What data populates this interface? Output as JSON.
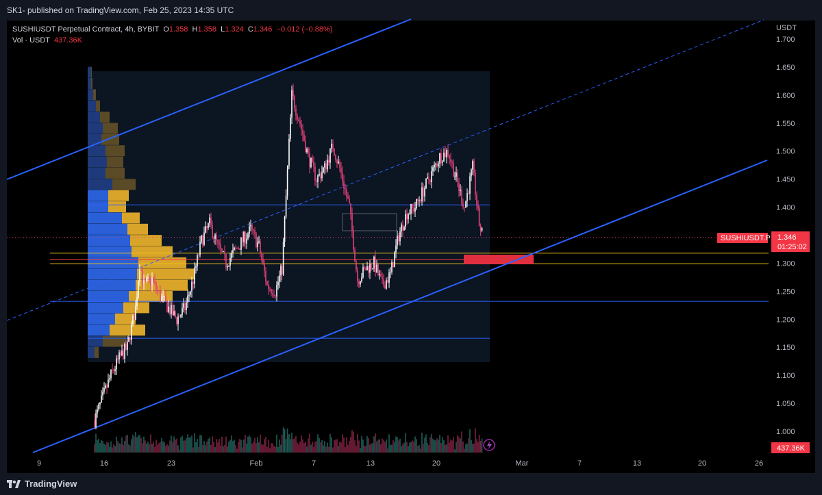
{
  "header": {
    "published": "SK1- published on TradingView.com, Feb 25, 2023 14:35 UTC"
  },
  "legend": {
    "symbol": "SUSHIUSDT Perpetual Contract, 4h, BYBIT",
    "o_label": "O",
    "o": "1.358",
    "h_label": "H",
    "h": "1.358",
    "l_label": "L",
    "l": "1.324",
    "c_label": "C",
    "c": "1.346",
    "change": "−0.012 (−0.88%)",
    "vol_label": "Vol · USDT",
    "vol": "437.36K"
  },
  "footer": {
    "brand": "TradingView"
  },
  "colors": {
    "up": "#ffffff",
    "down": "#e9417a",
    "accent_blue": "#2962ff",
    "level_yellow": "#f0c419",
    "tag_red": "#f23645"
  },
  "chart_data": {
    "type": "candlestick",
    "symbol": "SUSHIUSDT",
    "currency": "USDT",
    "timeframe": "4h",
    "ylim": [
      0.95,
      1.72
    ],
    "yticks": [
      "1.700",
      "1.650",
      "1.600",
      "1.550",
      "1.500",
      "1.450",
      "1.400",
      "1.350",
      "1.300",
      "1.250",
      "1.200",
      "1.150",
      "1.100",
      "1.050",
      "1.000"
    ],
    "xticks": [
      "9",
      "16",
      "23",
      "Feb",
      "7",
      "13",
      "20",
      "Mar",
      "7",
      "13",
      "20",
      "26"
    ],
    "last_price": {
      "symbol_tag": "SUSHIUSDT.P",
      "value": "1.346",
      "countdown": "01:25:02"
    },
    "volume_tag": "437.36K",
    "path": [
      [
        9,
        1.02
      ],
      [
        10,
        1.06
      ],
      [
        11,
        1.1
      ],
      [
        12,
        1.13
      ],
      [
        13,
        1.15
      ],
      [
        14,
        1.22
      ],
      [
        14.5,
        1.3
      ],
      [
        15,
        1.26
      ],
      [
        16,
        1.27
      ],
      [
        17,
        1.24
      ],
      [
        18,
        1.22
      ],
      [
        19,
        1.2
      ],
      [
        20,
        1.22
      ],
      [
        21,
        1.27
      ],
      [
        22,
        1.34
      ],
      [
        23,
        1.37
      ],
      [
        24,
        1.33
      ],
      [
        25,
        1.3
      ],
      [
        26,
        1.32
      ],
      [
        27,
        1.34
      ],
      [
        28,
        1.36
      ],
      [
        29,
        1.33
      ],
      [
        30,
        1.26
      ],
      [
        31,
        1.25
      ],
      [
        31.8,
        1.29
      ],
      [
        32.5,
        1.47
      ],
      [
        33,
        1.6
      ],
      [
        34,
        1.55
      ],
      [
        35,
        1.49
      ],
      [
        36,
        1.45
      ],
      [
        37,
        1.47
      ],
      [
        38,
        1.51
      ],
      [
        39,
        1.46
      ],
      [
        40,
        1.4
      ],
      [
        41,
        1.27
      ],
      [
        42,
        1.29
      ],
      [
        43,
        1.3
      ],
      [
        44,
        1.26
      ],
      [
        45,
        1.28
      ],
      [
        46,
        1.35
      ],
      [
        47,
        1.39
      ],
      [
        48,
        1.4
      ],
      [
        49,
        1.43
      ],
      [
        50,
        1.46
      ],
      [
        51,
        1.49
      ],
      [
        52,
        1.5
      ],
      [
        53,
        1.45
      ],
      [
        54,
        1.4
      ],
      [
        55,
        1.47
      ],
      [
        55.8,
        1.37
      ],
      [
        56.2,
        1.35
      ]
    ],
    "levels": [
      {
        "name": "upper-range",
        "value": 1.404,
        "color": "blue"
      },
      {
        "name": "yellow-upper",
        "value": 1.318,
        "color": "yellow"
      },
      {
        "name": "red-mid",
        "value": 1.306,
        "color": "red"
      },
      {
        "name": "yellow-lower",
        "value": 1.299,
        "color": "yellow"
      },
      {
        "name": "lower-range",
        "value": 1.232,
        "color": "blue"
      },
      {
        "name": "range-bottom",
        "value": 1.166,
        "color": "blue"
      }
    ]
  }
}
